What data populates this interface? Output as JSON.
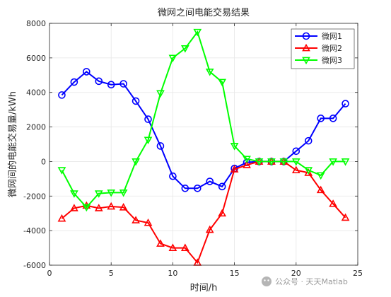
{
  "watermark": "公众号 · 天天Matlab",
  "chart_data": {
    "type": "line",
    "title": "微网之间电能交易结果",
    "xlabel": "时间/h",
    "ylabel": "微网间的电能交易量/kWh",
    "xlim": [
      0,
      25
    ],
    "ylim": [
      -6000,
      8000
    ],
    "xticks": [
      0,
      5,
      10,
      15,
      20,
      25
    ],
    "yticks": [
      -6000,
      -4000,
      -2000,
      0,
      2000,
      4000,
      6000,
      8000
    ],
    "grid": true,
    "legend_position": "top-right",
    "x": [
      1,
      2,
      3,
      4,
      5,
      6,
      7,
      8,
      9,
      10,
      11,
      12,
      13,
      14,
      15,
      16,
      17,
      18,
      19,
      20,
      21,
      22,
      23,
      24
    ],
    "series": [
      {
        "name": "微网1",
        "color": "#0000ff",
        "marker": "circle",
        "values": [
          3850,
          4600,
          5200,
          4650,
          4450,
          4500,
          3500,
          2450,
          900,
          -850,
          -1550,
          -1550,
          -1150,
          -1450,
          -400,
          -50,
          0,
          0,
          0,
          600,
          1200,
          2500,
          2500,
          3350
        ]
      },
      {
        "name": "微网2",
        "color": "#ff0000",
        "marker": "triangle-up",
        "values": [
          -3300,
          -2700,
          -2550,
          -2700,
          -2600,
          -2650,
          -3400,
          -3550,
          -4750,
          -5000,
          -5000,
          -5850,
          -3950,
          -3000,
          -450,
          -200,
          0,
          0,
          0,
          -500,
          -650,
          -1650,
          -2450,
          -3250
        ]
      },
      {
        "name": "微网3",
        "color": "#00ff00",
        "marker": "triangle-down",
        "values": [
          -500,
          -1850,
          -2650,
          -1850,
          -1800,
          -1800,
          0,
          1250,
          3950,
          6000,
          6550,
          7500,
          5200,
          4600,
          900,
          150,
          0,
          0,
          0,
          0,
          -500,
          -800,
          0,
          0
        ]
      }
    ]
  }
}
